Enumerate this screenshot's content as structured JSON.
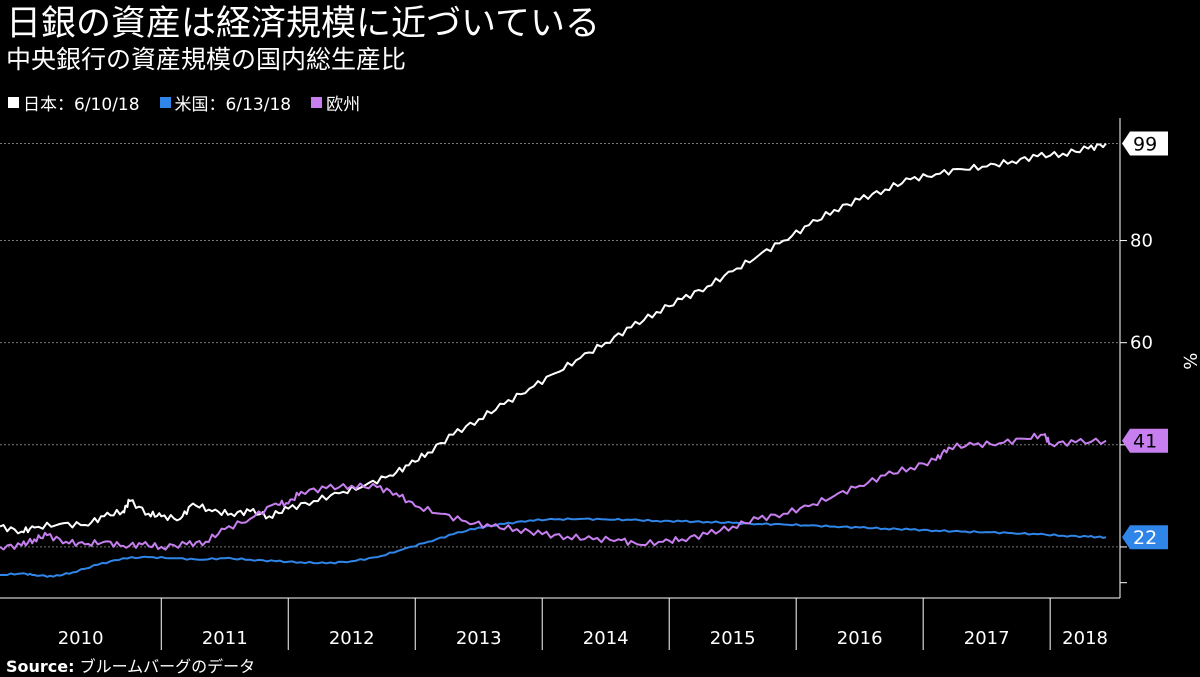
{
  "header": {
    "title": "日銀の資産は経済規模に近づいている",
    "subtitle": "中央銀行の資産規模の国内総生産比"
  },
  "legend": [
    {
      "label": "日本：6/10/18",
      "color": "#ffffff"
    },
    {
      "label": "米国：6/13/18",
      "color": "#2f86e8"
    },
    {
      "label": "欧州",
      "color": "#c77ff0"
    }
  ],
  "source": {
    "label": "Source:",
    "text": "ブルームバーグのデータ"
  },
  "chart_data": {
    "type": "line",
    "ylabel": "%",
    "ylim": [
      10,
      104
    ],
    "yticks": [
      20,
      40,
      60,
      80
    ],
    "ytick_labels": [
      "",
      "",
      "60",
      "80"
    ],
    "xlim": [
      2009.73,
      2018.55
    ],
    "year_labels": [
      "2010",
      "2011",
      "2012",
      "2013",
      "2014",
      "2015",
      "2016",
      "2017",
      "2018"
    ],
    "year_boundaries": [
      2010.0,
      2011.0,
      2012.0,
      2013.0,
      2014.0,
      2015.0,
      2016.0,
      2017.0,
      2018.0
    ],
    "series": [
      {
        "name": "日本：6/10/18",
        "color": "#ffffff",
        "end_label": "99",
        "points": [
          [
            2009.73,
            24
          ],
          [
            2009.9,
            23
          ],
          [
            2010.0,
            23.8
          ],
          [
            2010.2,
            24.5
          ],
          [
            2010.4,
            24.3
          ],
          [
            2010.55,
            26
          ],
          [
            2010.7,
            27
          ],
          [
            2010.75,
            29
          ],
          [
            2010.9,
            26.5
          ],
          [
            2011.0,
            26
          ],
          [
            2011.15,
            25.5
          ],
          [
            2011.25,
            28.5
          ],
          [
            2011.4,
            27
          ],
          [
            2011.55,
            26.5
          ],
          [
            2011.7,
            27
          ],
          [
            2011.85,
            26
          ],
          [
            2012.0,
            27.5
          ],
          [
            2012.2,
            29
          ],
          [
            2012.4,
            30.5
          ],
          [
            2012.6,
            32
          ],
          [
            2012.8,
            34
          ],
          [
            2012.95,
            36
          ],
          [
            2013.1,
            38.5
          ],
          [
            2013.3,
            42
          ],
          [
            2013.5,
            45
          ],
          [
            2013.7,
            48
          ],
          [
            2013.9,
            51
          ],
          [
            2014.1,
            54
          ],
          [
            2014.3,
            57
          ],
          [
            2014.5,
            60
          ],
          [
            2014.7,
            63
          ],
          [
            2014.9,
            66
          ],
          [
            2015.1,
            68.5
          ],
          [
            2015.3,
            71
          ],
          [
            2015.5,
            74
          ],
          [
            2015.7,
            77
          ],
          [
            2015.9,
            80
          ],
          [
            2016.1,
            83
          ],
          [
            2016.3,
            86
          ],
          [
            2016.5,
            88
          ],
          [
            2016.7,
            90
          ],
          [
            2016.9,
            92
          ],
          [
            2017.1,
            93
          ],
          [
            2017.3,
            94
          ],
          [
            2017.5,
            94.5
          ],
          [
            2017.7,
            95.5
          ],
          [
            2017.9,
            96.5
          ],
          [
            2018.1,
            97
          ],
          [
            2018.3,
            98
          ],
          [
            2018.44,
            99
          ]
        ]
      },
      {
        "name": "米国：6/13/18",
        "color": "#2f86e8",
        "end_label": "22",
        "points": [
          [
            2009.73,
            14.5
          ],
          [
            2009.9,
            14.8
          ],
          [
            2010.0,
            14.5
          ],
          [
            2010.15,
            14.2
          ],
          [
            2010.3,
            15
          ],
          [
            2010.5,
            16.5
          ],
          [
            2010.7,
            17.8
          ],
          [
            2010.9,
            18
          ],
          [
            2011.1,
            17.8
          ],
          [
            2011.3,
            17.5
          ],
          [
            2011.5,
            17.8
          ],
          [
            2011.7,
            17.5
          ],
          [
            2011.9,
            17.2
          ],
          [
            2012.1,
            17
          ],
          [
            2012.3,
            16.8
          ],
          [
            2012.5,
            17.2
          ],
          [
            2012.7,
            18
          ],
          [
            2012.9,
            19.5
          ],
          [
            2013.1,
            21
          ],
          [
            2013.3,
            22.5
          ],
          [
            2013.5,
            23.8
          ],
          [
            2013.7,
            24.5
          ],
          [
            2013.9,
            25.2
          ],
          [
            2014.1,
            25.4
          ],
          [
            2014.3,
            25.5
          ],
          [
            2014.5,
            25.4
          ],
          [
            2014.7,
            25.3
          ],
          [
            2014.9,
            25.1
          ],
          [
            2015.1,
            25
          ],
          [
            2015.3,
            24.9
          ],
          [
            2015.5,
            24.7
          ],
          [
            2015.7,
            24.5
          ],
          [
            2015.9,
            24.4
          ],
          [
            2016.1,
            24.2
          ],
          [
            2016.3,
            24
          ],
          [
            2016.5,
            23.8
          ],
          [
            2016.7,
            23.6
          ],
          [
            2016.9,
            23.4
          ],
          [
            2017.1,
            23.2
          ],
          [
            2017.3,
            23
          ],
          [
            2017.5,
            22.9
          ],
          [
            2017.7,
            22.7
          ],
          [
            2017.9,
            22.5
          ],
          [
            2018.1,
            22.2
          ],
          [
            2018.3,
            22
          ],
          [
            2018.44,
            21.9
          ]
        ]
      },
      {
        "name": "欧州",
        "color": "#c77ff0",
        "end_label": "41",
        "points": [
          [
            2009.73,
            20
          ],
          [
            2009.9,
            20.3
          ],
          [
            2010.0,
            21.5
          ],
          [
            2010.1,
            22.3
          ],
          [
            2010.25,
            21
          ],
          [
            2010.4,
            20.5
          ],
          [
            2010.55,
            21
          ],
          [
            2010.7,
            20.2
          ],
          [
            2010.85,
            20.5
          ],
          [
            2011.0,
            20
          ],
          [
            2011.2,
            20.5
          ],
          [
            2011.35,
            21
          ],
          [
            2011.5,
            23.5
          ],
          [
            2011.7,
            25.5
          ],
          [
            2011.9,
            28.5
          ],
          [
            2012.0,
            28.5
          ],
          [
            2012.1,
            30.8
          ],
          [
            2012.3,
            31.5
          ],
          [
            2012.5,
            32
          ],
          [
            2012.7,
            31.7
          ],
          [
            2012.85,
            30.5
          ],
          [
            2013.0,
            28
          ],
          [
            2013.2,
            26.5
          ],
          [
            2013.4,
            25
          ],
          [
            2013.6,
            24
          ],
          [
            2013.8,
            23.5
          ],
          [
            2014.0,
            22.5
          ],
          [
            2014.2,
            22
          ],
          [
            2014.4,
            21.5
          ],
          [
            2014.6,
            21.5
          ],
          [
            2014.75,
            20.5
          ],
          [
            2014.95,
            21
          ],
          [
            2015.1,
            21.5
          ],
          [
            2015.3,
            22.5
          ],
          [
            2015.5,
            24
          ],
          [
            2015.7,
            25.5
          ],
          [
            2015.9,
            26.5
          ],
          [
            2016.1,
            28
          ],
          [
            2016.3,
            30
          ],
          [
            2016.5,
            32
          ],
          [
            2016.7,
            34
          ],
          [
            2016.9,
            35.5
          ],
          [
            2017.1,
            37
          ],
          [
            2017.2,
            39.5
          ],
          [
            2017.4,
            40
          ],
          [
            2017.6,
            40.3
          ],
          [
            2017.8,
            41.2
          ],
          [
            2017.95,
            42
          ],
          [
            2018.0,
            40.2
          ],
          [
            2018.2,
            40.5
          ],
          [
            2018.44,
            40.8
          ]
        ]
      }
    ]
  }
}
